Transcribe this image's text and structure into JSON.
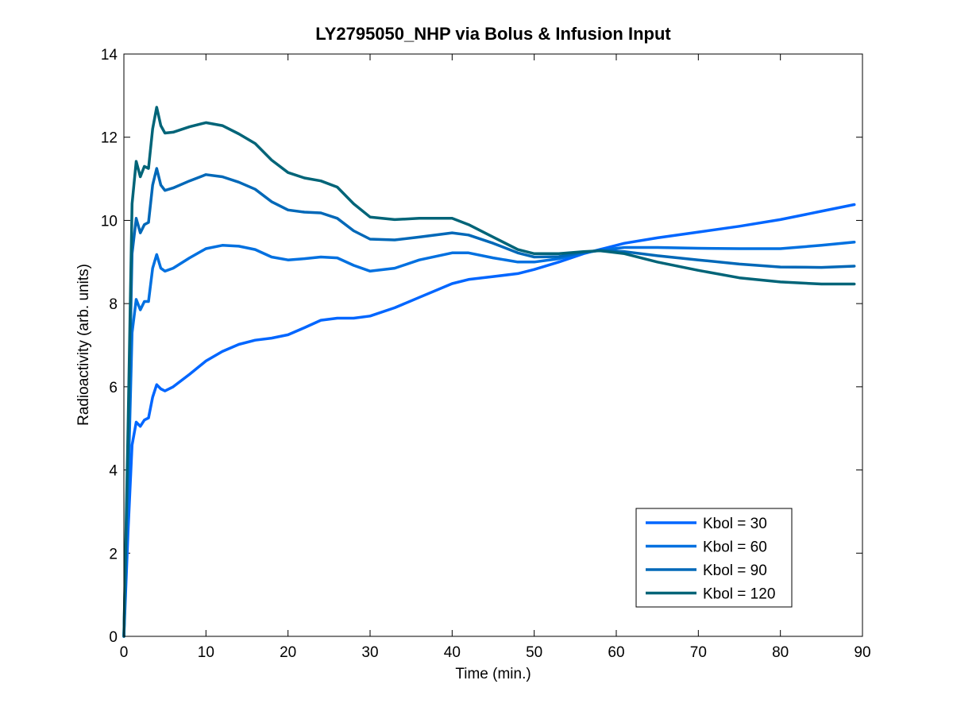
{
  "chart_data": {
    "type": "line",
    "title": "LY2795050_NHP via Bolus & Infusion Input",
    "xlabel": "Time (min.)",
    "ylabel": "Radioactivity (arb. units)",
    "xlim": [
      0,
      90
    ],
    "ylim": [
      0,
      14
    ],
    "xticks": [
      0,
      10,
      20,
      30,
      40,
      50,
      60,
      70,
      80,
      90
    ],
    "yticks": [
      0,
      2,
      4,
      6,
      8,
      10,
      12,
      14
    ],
    "grid": false,
    "legend_position": "bottom-right",
    "series": [
      {
        "name": "Kbol = 30",
        "color": "#0066ff",
        "points": [
          [
            0,
            0
          ],
          [
            0.5,
            2.5
          ],
          [
            1,
            4.6
          ],
          [
            1.5,
            5.15
          ],
          [
            2,
            5.05
          ],
          [
            2.5,
            5.2
          ],
          [
            3,
            5.25
          ],
          [
            3.5,
            5.75
          ],
          [
            4,
            6.05
          ],
          [
            4.5,
            5.95
          ],
          [
            5,
            5.9
          ],
          [
            6,
            6.0
          ],
          [
            8,
            6.3
          ],
          [
            10,
            6.62
          ],
          [
            12,
            6.85
          ],
          [
            14,
            7.02
          ],
          [
            16,
            7.12
          ],
          [
            18,
            7.17
          ],
          [
            20,
            7.25
          ],
          [
            22,
            7.42
          ],
          [
            24,
            7.6
          ],
          [
            26,
            7.65
          ],
          [
            28,
            7.65
          ],
          [
            30,
            7.7
          ],
          [
            33,
            7.9
          ],
          [
            36,
            8.15
          ],
          [
            40,
            8.48
          ],
          [
            42,
            8.58
          ],
          [
            45,
            8.65
          ],
          [
            48,
            8.72
          ],
          [
            50,
            8.82
          ],
          [
            53,
            9.0
          ],
          [
            56,
            9.2
          ],
          [
            58,
            9.3
          ],
          [
            61,
            9.45
          ],
          [
            65,
            9.58
          ],
          [
            70,
            9.72
          ],
          [
            75,
            9.86
          ],
          [
            80,
            10.02
          ],
          [
            85,
            10.22
          ],
          [
            89,
            10.38
          ]
        ]
      },
      {
        "name": "Kbol = 60",
        "color": "#0070e0",
        "points": [
          [
            0,
            0
          ],
          [
            0.5,
            3.5
          ],
          [
            1,
            7.3
          ],
          [
            1.5,
            8.1
          ],
          [
            2,
            7.85
          ],
          [
            2.5,
            8.05
          ],
          [
            3,
            8.05
          ],
          [
            3.5,
            8.85
          ],
          [
            4,
            9.18
          ],
          [
            4.5,
            8.85
          ],
          [
            5,
            8.78
          ],
          [
            6,
            8.85
          ],
          [
            8,
            9.1
          ],
          [
            10,
            9.32
          ],
          [
            12,
            9.4
          ],
          [
            14,
            9.38
          ],
          [
            16,
            9.3
          ],
          [
            18,
            9.12
          ],
          [
            20,
            9.05
          ],
          [
            22,
            9.08
          ],
          [
            24,
            9.12
          ],
          [
            26,
            9.1
          ],
          [
            28,
            8.92
          ],
          [
            30,
            8.78
          ],
          [
            33,
            8.85
          ],
          [
            36,
            9.05
          ],
          [
            40,
            9.22
          ],
          [
            42,
            9.22
          ],
          [
            45,
            9.1
          ],
          [
            48,
            9.0
          ],
          [
            50,
            9.0
          ],
          [
            53,
            9.08
          ],
          [
            56,
            9.22
          ],
          [
            58,
            9.28
          ],
          [
            61,
            9.35
          ],
          [
            65,
            9.35
          ],
          [
            70,
            9.33
          ],
          [
            75,
            9.32
          ],
          [
            80,
            9.32
          ],
          [
            85,
            9.4
          ],
          [
            89,
            9.48
          ]
        ]
      },
      {
        "name": "Kbol = 90",
        "color": "#0068b8",
        "points": [
          [
            0,
            0
          ],
          [
            0.5,
            4.5
          ],
          [
            1,
            9.2
          ],
          [
            1.5,
            10.05
          ],
          [
            2,
            9.7
          ],
          [
            2.5,
            9.9
          ],
          [
            3,
            9.95
          ],
          [
            3.5,
            10.85
          ],
          [
            4,
            11.25
          ],
          [
            4.5,
            10.85
          ],
          [
            5,
            10.72
          ],
          [
            6,
            10.78
          ],
          [
            8,
            10.95
          ],
          [
            10,
            11.1
          ],
          [
            12,
            11.05
          ],
          [
            14,
            10.92
          ],
          [
            16,
            10.75
          ],
          [
            18,
            10.45
          ],
          [
            20,
            10.25
          ],
          [
            22,
            10.2
          ],
          [
            24,
            10.18
          ],
          [
            26,
            10.05
          ],
          [
            28,
            9.75
          ],
          [
            30,
            9.55
          ],
          [
            33,
            9.53
          ],
          [
            36,
            9.6
          ],
          [
            40,
            9.7
          ],
          [
            42,
            9.65
          ],
          [
            45,
            9.45
          ],
          [
            48,
            9.22
          ],
          [
            50,
            9.12
          ],
          [
            53,
            9.13
          ],
          [
            56,
            9.23
          ],
          [
            58,
            9.28
          ],
          [
            61,
            9.25
          ],
          [
            65,
            9.15
          ],
          [
            70,
            9.05
          ],
          [
            75,
            8.95
          ],
          [
            80,
            8.88
          ],
          [
            85,
            8.87
          ],
          [
            89,
            8.9
          ]
        ]
      },
      {
        "name": "Kbol = 120",
        "color": "#006478",
        "points": [
          [
            0,
            0
          ],
          [
            0.5,
            5.0
          ],
          [
            1,
            10.4
          ],
          [
            1.5,
            11.42
          ],
          [
            2,
            11.05
          ],
          [
            2.5,
            11.3
          ],
          [
            3,
            11.25
          ],
          [
            3.5,
            12.2
          ],
          [
            4,
            12.72
          ],
          [
            4.5,
            12.28
          ],
          [
            5,
            12.1
          ],
          [
            6,
            12.12
          ],
          [
            8,
            12.25
          ],
          [
            10,
            12.35
          ],
          [
            12,
            12.28
          ],
          [
            14,
            12.08
          ],
          [
            16,
            11.85
          ],
          [
            18,
            11.45
          ],
          [
            20,
            11.15
          ],
          [
            22,
            11.02
          ],
          [
            24,
            10.95
          ],
          [
            26,
            10.8
          ],
          [
            28,
            10.4
          ],
          [
            30,
            10.08
          ],
          [
            33,
            10.02
          ],
          [
            36,
            10.05
          ],
          [
            40,
            10.05
          ],
          [
            42,
            9.9
          ],
          [
            45,
            9.6
          ],
          [
            48,
            9.3
          ],
          [
            50,
            9.2
          ],
          [
            53,
            9.2
          ],
          [
            56,
            9.25
          ],
          [
            58,
            9.27
          ],
          [
            61,
            9.2
          ],
          [
            65,
            9.0
          ],
          [
            70,
            8.8
          ],
          [
            75,
            8.62
          ],
          [
            80,
            8.52
          ],
          [
            85,
            8.47
          ],
          [
            89,
            8.47
          ]
        ]
      }
    ]
  }
}
